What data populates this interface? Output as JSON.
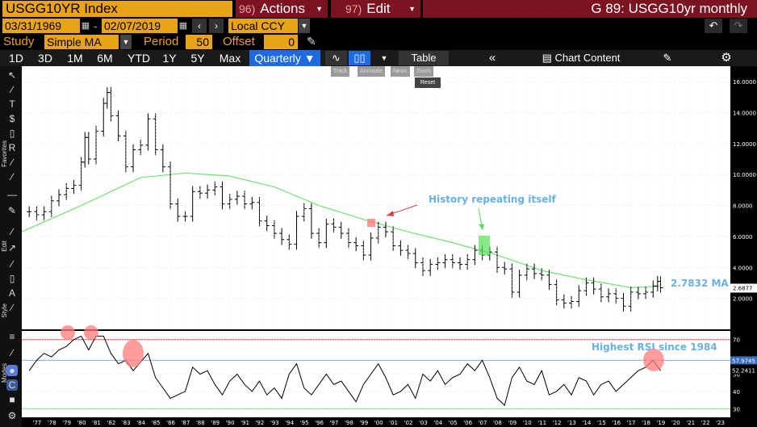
{
  "header": {
    "ticker": "USGG10YR Index",
    "actions": {
      "num": "96)",
      "label": "Actions"
    },
    "edit": {
      "num": "97)",
      "label": "Edit"
    },
    "title": "G 89: USGG10yr monthly"
  },
  "dates": {
    "start": "03/31/1969",
    "end": "02/07/2019",
    "separator": "-",
    "currency": "Local CCY"
  },
  "study": {
    "label": "Study",
    "value": "Simple MA",
    "period_label": "Period",
    "period": "50",
    "offset_label": "Offset",
    "offset": "0"
  },
  "toolbar": {
    "periods": [
      "1D",
      "3D",
      "1M",
      "6M",
      "YTD",
      "1Y",
      "5Y",
      "Max"
    ],
    "frequency": "Quarterly ▼",
    "table": "Table",
    "chart_content": "Chart Content"
  },
  "mini_tools": [
    "Track",
    "Annotate",
    "News",
    "Zoom"
  ],
  "reset_label": "Reset",
  "left_labels": {
    "favorites": "Favorites",
    "edit": "Edit",
    "style": "Style",
    "modes": "Modes"
  },
  "colors": {
    "price": "#000000",
    "ma": "#6fe26f",
    "rsi": "#000000",
    "rsi_upper_line": "#e23c3c",
    "rsi_mid_line": "#7ab0e0",
    "annotation_text": "#6ab0e6",
    "highlight_red": "#ff7b7b",
    "highlight_green": "#56e056",
    "header_orange": "#e8a317",
    "header_maroon": "#7b1420",
    "active_blue": "#1e6ae0"
  },
  "annotations": {
    "history": "History repeating itself",
    "ma_value": "2.7832 MA",
    "rsi_note": "Highest RSI since 1984"
  },
  "price_axis": {
    "labels": [
      "16.0000",
      "14.0000",
      "12.0000",
      "10.0000",
      "8.0000",
      "6.0000",
      "4.0000",
      "2.0000"
    ],
    "last_price": "2.6877"
  },
  "rsi_axis": {
    "labels": [
      "70",
      "50",
      "40",
      "30"
    ],
    "tag_upper": "57.9745",
    "tag_lower": "52.2411"
  },
  "x_labels": [
    "'77",
    "'78",
    "'79",
    "'80",
    "'81",
    "'82",
    "'83",
    "'84",
    "'85",
    "'86",
    "'87",
    "'88",
    "'89",
    "'90",
    "'91",
    "'92",
    "'93",
    "'94",
    "'95",
    "'96",
    "'97",
    "'98",
    "'99",
    "'00",
    "'01",
    "'02",
    "'03",
    "'04",
    "'05",
    "'06",
    "'07",
    "'08",
    "'09",
    "'10",
    "'11",
    "'12",
    "'13",
    "'14",
    "'15",
    "'16",
    "'17",
    "'18",
    "'19",
    "'20",
    "'21",
    "'22",
    "'23"
  ],
  "chart_data": {
    "type": "line",
    "title": "G 89: USGG10yr monthly",
    "series": [
      {
        "name": "USGG10YR Index",
        "x": [
          1976.5,
          1977,
          1977.5,
          1978,
          1978.5,
          1979,
          1979.5,
          1980,
          1980.25,
          1980.5,
          1981,
          1981.5,
          1981.75,
          1982,
          1982.5,
          1983,
          1983.5,
          1984,
          1984.5,
          1985,
          1985.5,
          1986,
          1986.5,
          1987,
          1987.5,
          1988,
          1988.5,
          1989,
          1989.5,
          1990,
          1990.5,
          1991,
          1991.5,
          1992,
          1992.5,
          1993,
          1993.5,
          1994,
          1994.5,
          1995,
          1995.5,
          1996,
          1996.5,
          1997,
          1997.5,
          1998,
          1998.5,
          1999,
          1999.5,
          2000,
          2000.5,
          2001,
          2001.5,
          2002,
          2002.5,
          2003,
          2003.5,
          2004,
          2004.5,
          2005,
          2005.5,
          2006,
          2006.5,
          2007,
          2007.5,
          2008,
          2008.5,
          2009,
          2009.5,
          2010,
          2010.5,
          2011,
          2011.5,
          2012,
          2012.5,
          2013,
          2013.5,
          2014,
          2014.5,
          2015,
          2015.5,
          2016,
          2016.5,
          2017,
          2017.5,
          2018,
          2018.5,
          2018.8,
          2019
        ],
        "values": [
          7.6,
          7.4,
          7.6,
          8.3,
          8.7,
          9.1,
          9.3,
          10.8,
          12.4,
          11.0,
          12.8,
          14.6,
          15.3,
          13.8,
          12.5,
          10.5,
          11.6,
          11.9,
          13.6,
          11.6,
          10.5,
          8.1,
          7.3,
          7.3,
          8.9,
          8.8,
          9.0,
          9.2,
          8.1,
          8.4,
          8.6,
          8.1,
          8.2,
          7.0,
          6.7,
          6.2,
          5.8,
          5.5,
          7.3,
          7.8,
          6.2,
          5.6,
          6.8,
          6.6,
          6.2,
          5.6,
          5.4,
          4.8,
          5.9,
          6.6,
          6.3,
          5.4,
          5.1,
          4.9,
          4.3,
          3.8,
          4.2,
          4.3,
          4.5,
          4.3,
          4.2,
          4.5,
          5.1,
          4.8,
          5.0,
          4.0,
          3.9,
          2.4,
          3.5,
          3.9,
          3.6,
          3.5,
          2.9,
          1.9,
          1.7,
          1.8,
          2.5,
          3.0,
          2.6,
          2.1,
          2.3,
          2.0,
          1.5,
          2.4,
          2.3,
          2.4,
          2.8,
          3.1,
          2.69
        ]
      },
      {
        "name": "Simple MA 50",
        "x": [
          1976,
          1980,
          1984,
          1987,
          1990,
          1993,
          1996,
          1999,
          2002,
          2005,
          2008,
          2011,
          2014,
          2017,
          2019
        ],
        "values": [
          6.3,
          8.0,
          9.8,
          10.1,
          9.9,
          9.2,
          8.0,
          7.1,
          6.3,
          5.6,
          4.8,
          3.8,
          3.2,
          2.7,
          2.78
        ]
      },
      {
        "name": "RSI",
        "x": [
          1976.5,
          1977,
          1977.5,
          1978,
          1978.5,
          1979,
          1979.5,
          1980,
          1980.5,
          1981,
          1981.5,
          1982,
          1982.5,
          1983,
          1983.5,
          1984,
          1984.5,
          1985,
          1985.5,
          1986,
          1986.5,
          1987,
          1987.5,
          1988,
          1988.5,
          1989,
          1989.5,
          1990,
          1990.5,
          1991,
          1991.5,
          1992,
          1992.5,
          1993,
          1993.5,
          1994,
          1994.5,
          1995,
          1995.5,
          1996,
          1996.5,
          1997,
          1997.5,
          1998,
          1998.5,
          1999,
          1999.5,
          2000,
          2000.5,
          2001,
          2001.5,
          2002,
          2002.5,
          2003,
          2003.5,
          2004,
          2004.5,
          2005,
          2005.5,
          2006,
          2006.5,
          2007,
          2007.5,
          2008,
          2008.5,
          2009,
          2009.5,
          2010,
          2010.5,
          2011,
          2011.5,
          2012,
          2012.5,
          2013,
          2013.5,
          2014,
          2014.5,
          2015,
          2015.5,
          2016,
          2016.5,
          2017,
          2017.5,
          2018,
          2018.5,
          2019
        ],
        "values": [
          52,
          58,
          62,
          60,
          64,
          66,
          70,
          72,
          64,
          73,
          74,
          62,
          56,
          58,
          52,
          57,
          62,
          48,
          42,
          36,
          38,
          40,
          54,
          50,
          52,
          44,
          38,
          46,
          50,
          44,
          40,
          46,
          38,
          42,
          36,
          50,
          56,
          42,
          38,
          44,
          50,
          44,
          46,
          40,
          34,
          44,
          50,
          56,
          48,
          38,
          40,
          44,
          36,
          50,
          46,
          52,
          44,
          48,
          50,
          56,
          52,
          58,
          48,
          36,
          32,
          48,
          54,
          46,
          44,
          52,
          38,
          40,
          44,
          38,
          48,
          46,
          38,
          44,
          46,
          40,
          44,
          48,
          52,
          54,
          58,
          52
        ]
      }
    ],
    "ylim": [
      0,
      17
    ],
    "rsi_ylim": [
      25,
      75
    ],
    "xlim": [
      1976,
      2023.7
    ],
    "grid": true,
    "legend": "none"
  }
}
